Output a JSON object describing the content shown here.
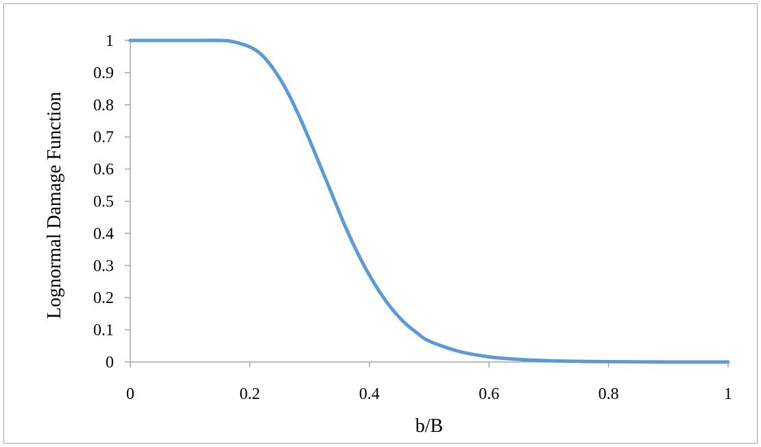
{
  "chart_data": {
    "type": "line",
    "title": "",
    "xlabel": "b/B",
    "ylabel": "Lognormal  Damage  Function",
    "xlim": [
      0,
      1
    ],
    "ylim": [
      0,
      1
    ],
    "xticks": [
      "0",
      "0.2",
      "0.4",
      "0.6",
      "0.8",
      "1"
    ],
    "yticks": [
      "0",
      "0.1",
      "0.2",
      "0.3",
      "0.4",
      "0.5",
      "0.6",
      "0.7",
      "0.8",
      "0.9",
      "1"
    ],
    "grid": false,
    "legend": "none",
    "series": [
      {
        "color": "#5b9bd5",
        "x": [
          0,
          0.05,
          0.1,
          0.15,
          0.17,
          0.2,
          0.22,
          0.24,
          0.26,
          0.28,
          0.3,
          0.32,
          0.34,
          0.36,
          0.38,
          0.4,
          0.42,
          0.44,
          0.46,
          0.48,
          0.5,
          0.55,
          0.6,
          0.65,
          0.7,
          0.75,
          0.8,
          0.9,
          1.0
        ],
        "y": [
          1.0,
          1.0,
          1.0,
          1.0,
          0.997,
          0.98,
          0.955,
          0.91,
          0.85,
          0.775,
          0.69,
          0.6,
          0.51,
          0.42,
          0.34,
          0.27,
          0.21,
          0.16,
          0.12,
          0.09,
          0.065,
          0.033,
          0.016,
          0.008,
          0.004,
          0.002,
          0.001,
          0.0,
          0.0
        ]
      }
    ]
  }
}
